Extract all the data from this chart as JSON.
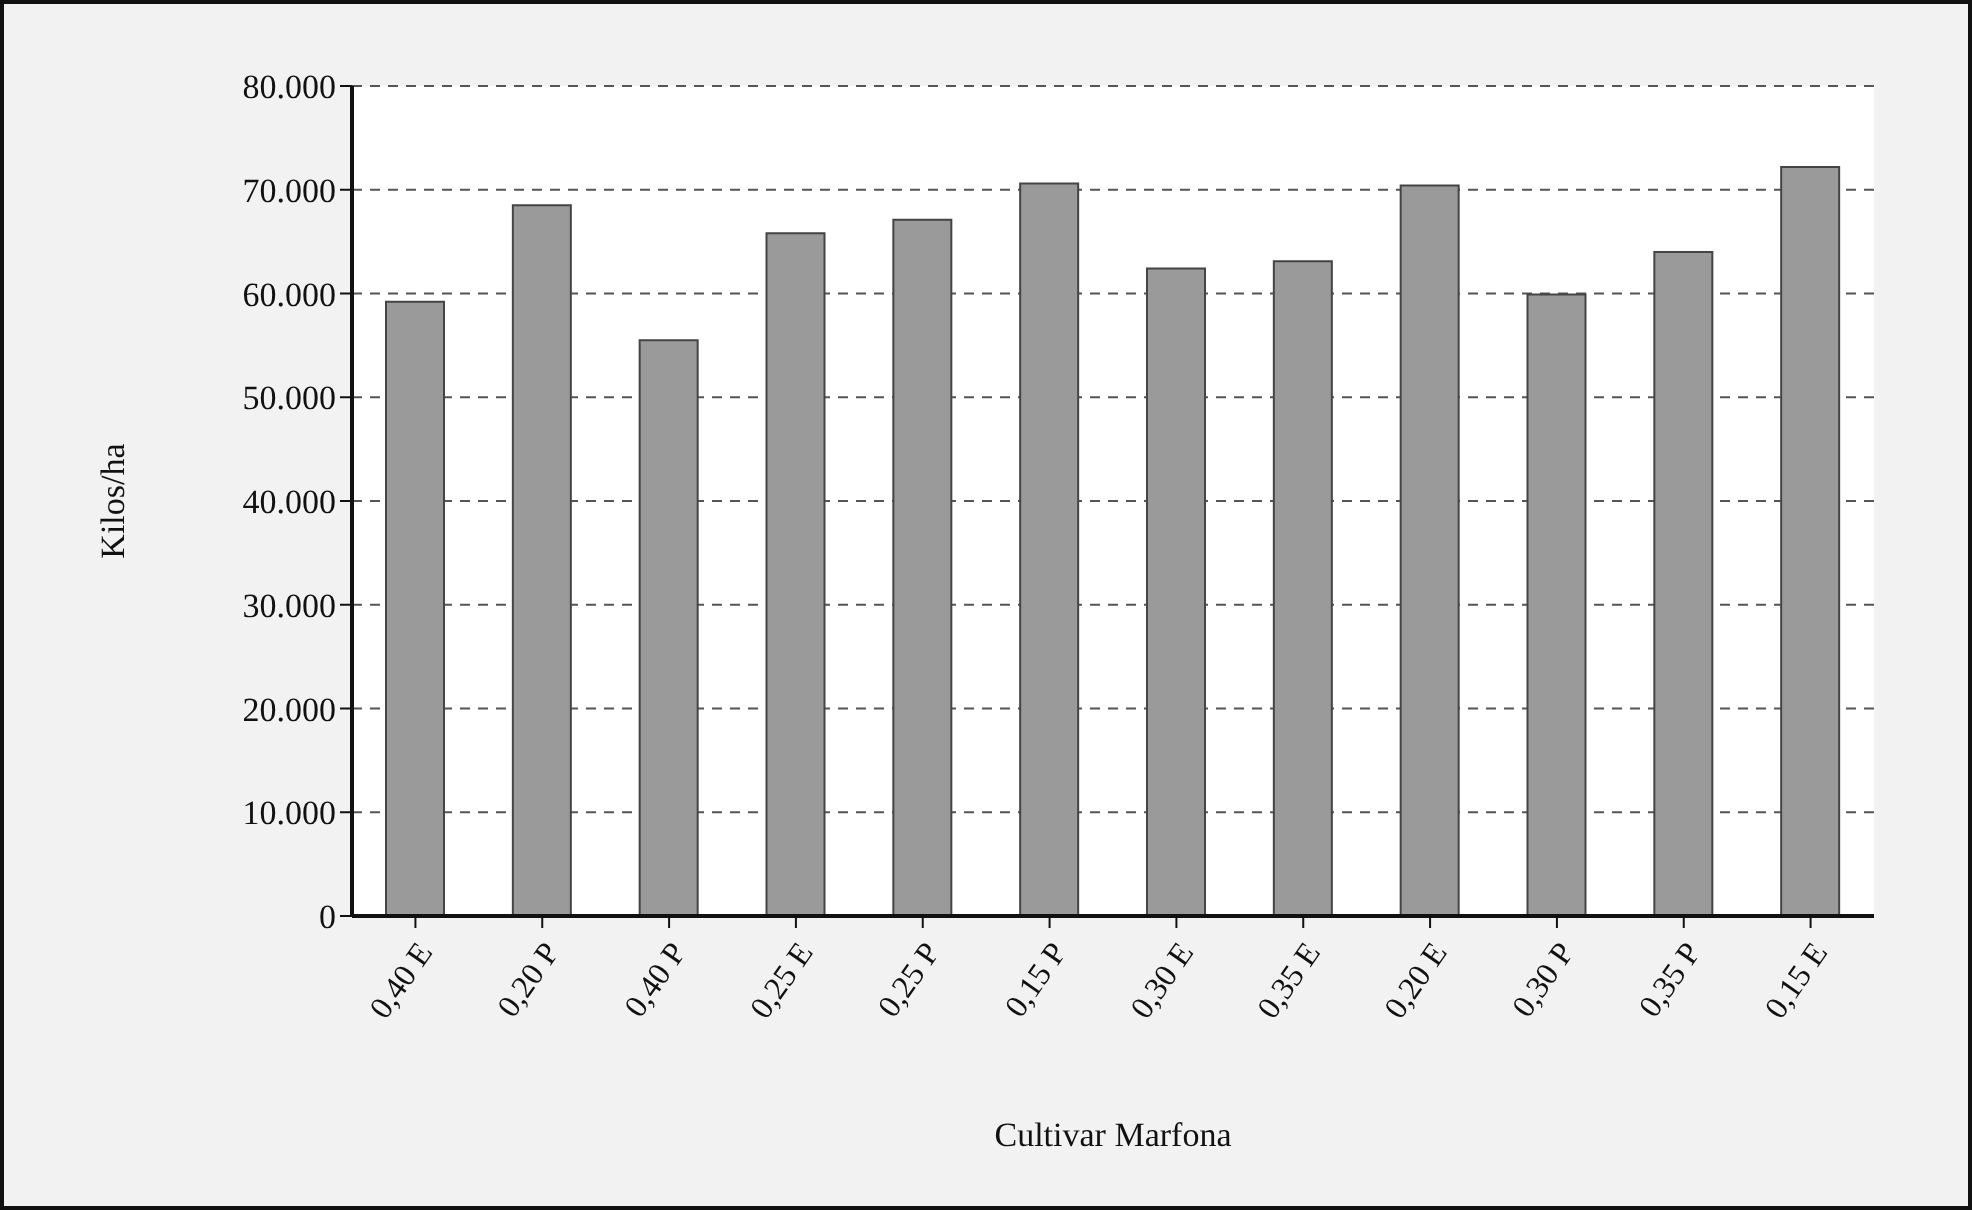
{
  "chart_data": {
    "type": "bar",
    "xlabel": "Cultivar Marfona",
    "ylabel": "Kilos/ha",
    "categories": [
      "0,40 E",
      "0,20 P",
      "0,40 P",
      "0,25 E",
      "0,25 P",
      "0,15 P",
      "0,30 E",
      "0,35 E",
      "0,20 E",
      "0,30 P",
      "0,35 P",
      "0,15 E"
    ],
    "values": [
      59200,
      68500,
      55500,
      65800,
      67100,
      70600,
      62400,
      63100,
      70400,
      59900,
      64000,
      72200
    ],
    "color": "#9a9a9a",
    "ylim": [
      0,
      80000
    ],
    "yticks": [
      0,
      {
        "value": 10000,
        "label": "10.000"
      },
      {
        "value": 20000,
        "label": "20.000"
      },
      {
        "value": 30000,
        "label": "30.000"
      },
      {
        "value": 40000,
        "label": "40.000"
      },
      {
        "value": 50000,
        "label": "50.000"
      },
      {
        "value": 60000,
        "label": "60.000"
      },
      {
        "value": 70000,
        "label": "70.000"
      },
      {
        "value": 80000,
        "label": "80.000"
      }
    ],
    "grid": "y",
    "legend": false
  }
}
